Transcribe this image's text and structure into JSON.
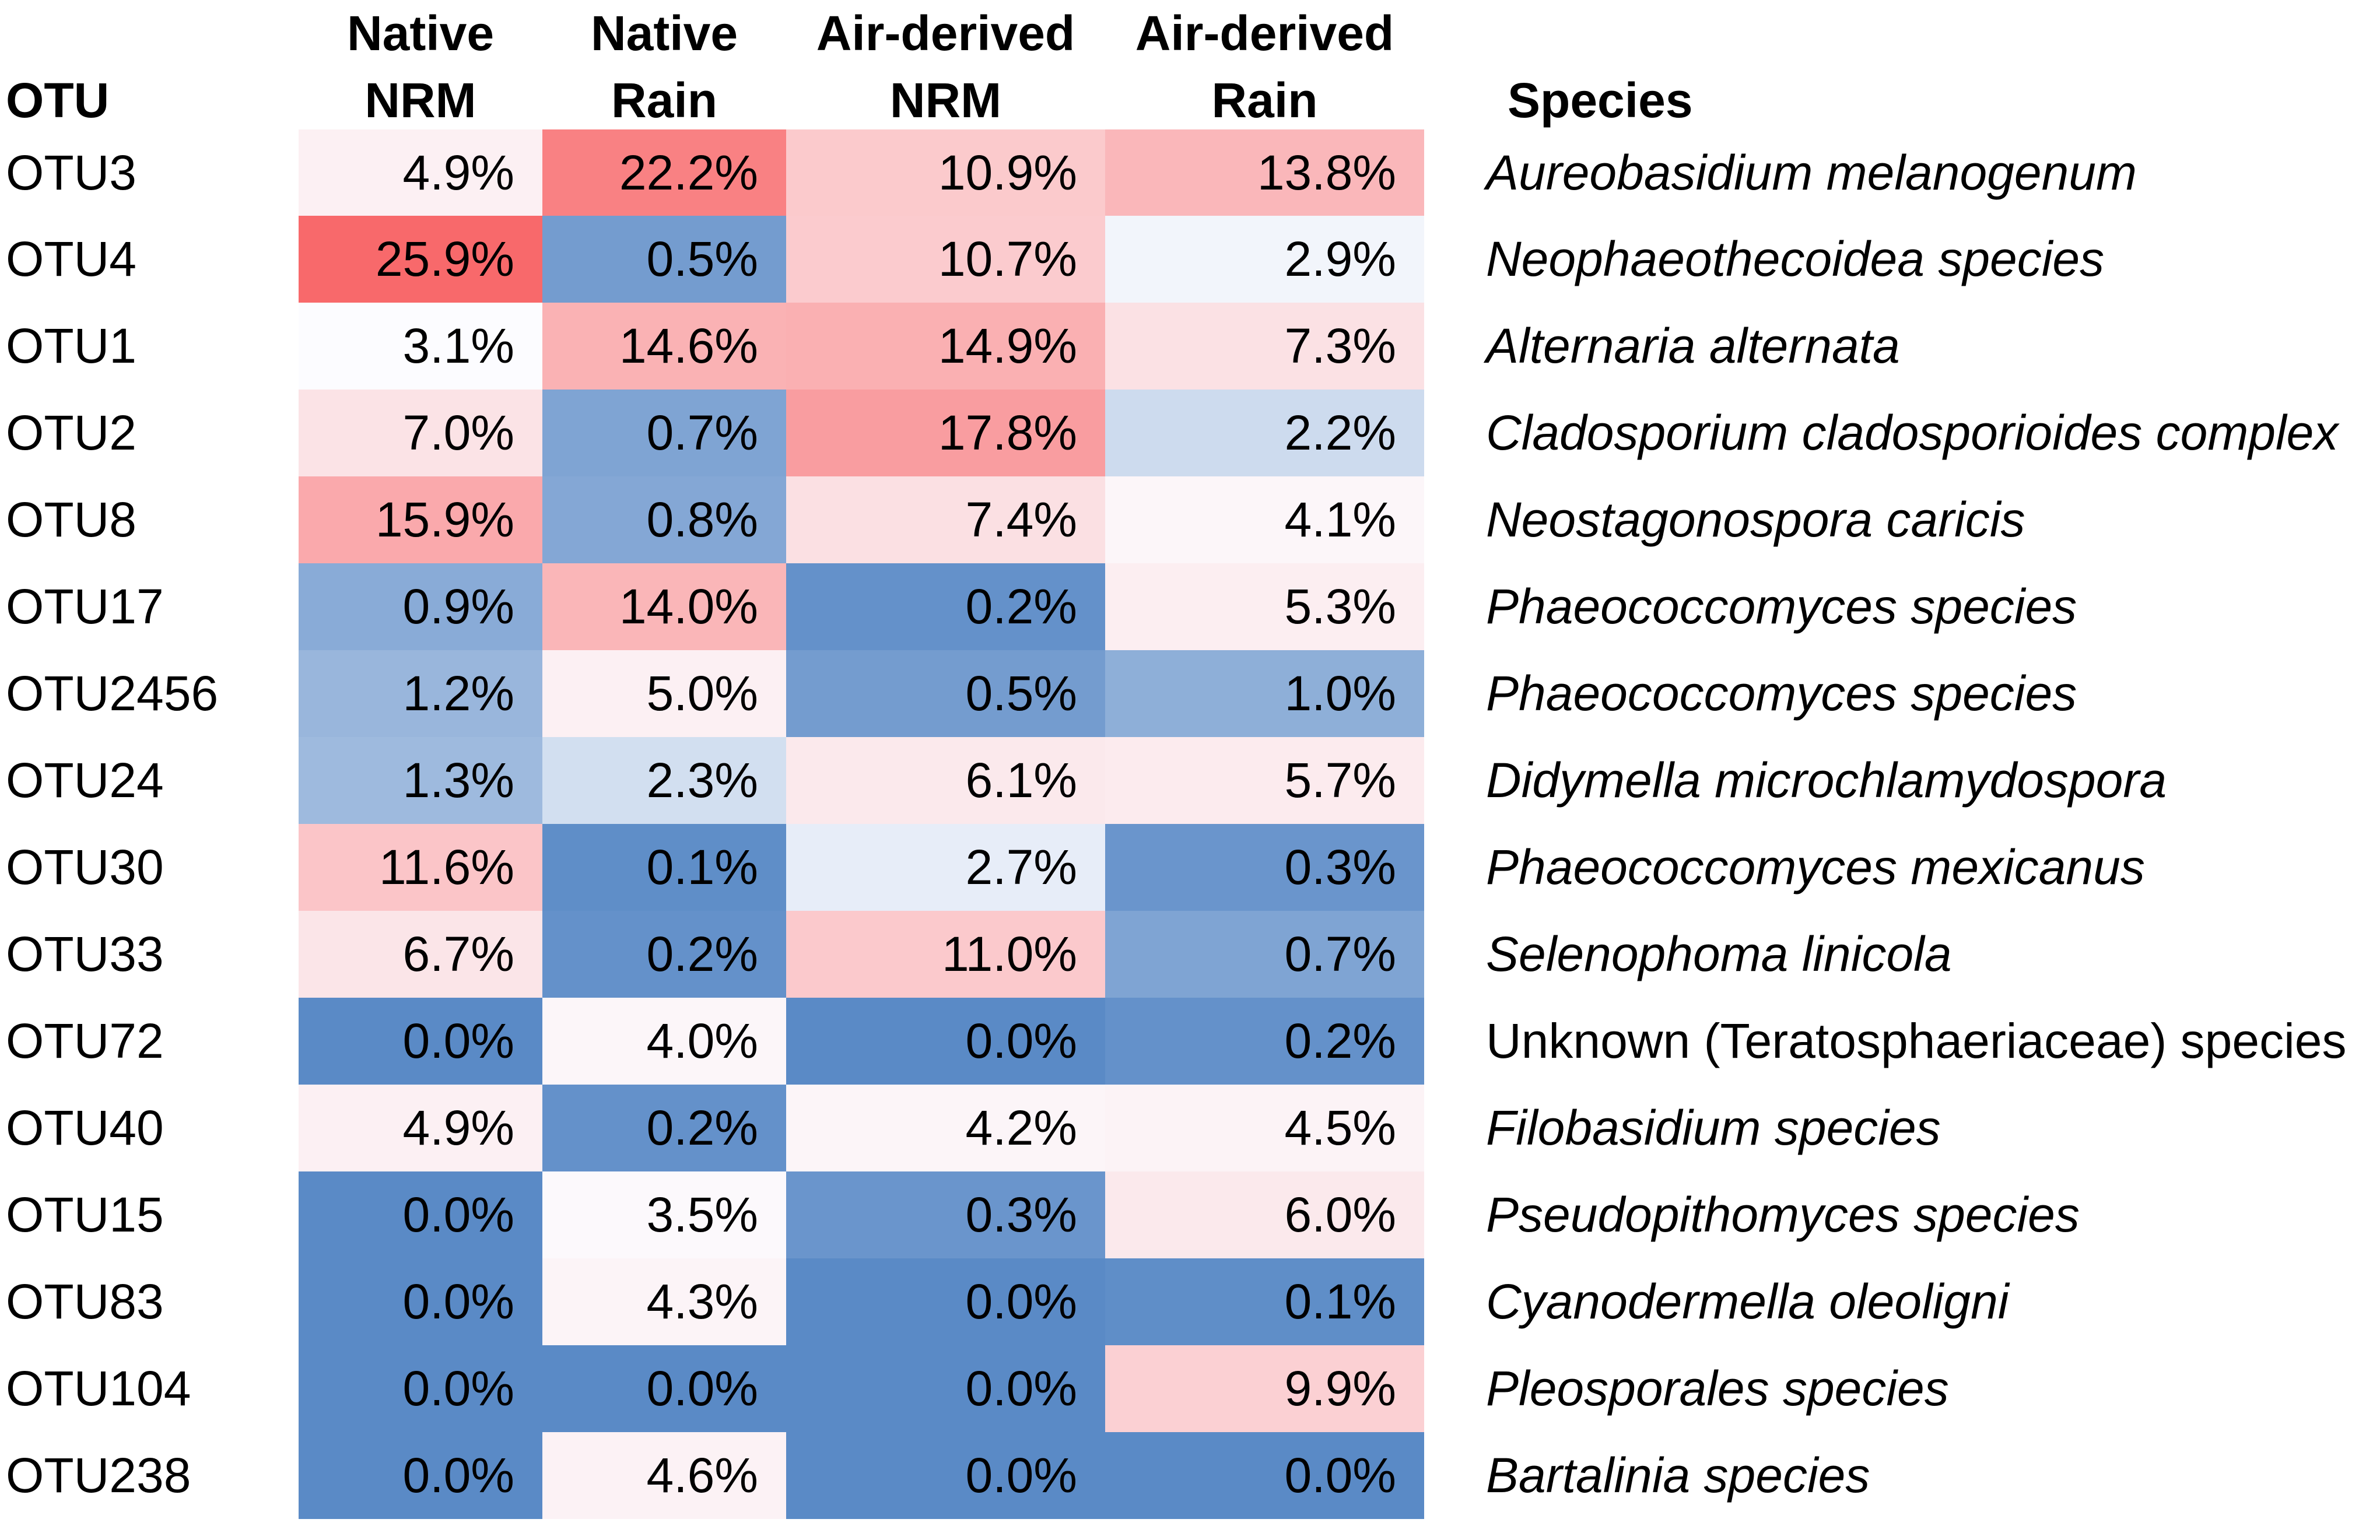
{
  "chart_data": {
    "type": "heatmap",
    "row_header": "OTU",
    "species_header": "Species",
    "columns": [
      {
        "line1": "Native",
        "line2": "NRM"
      },
      {
        "line1": "Native",
        "line2": "Rain"
      },
      {
        "line1": "Air-derived",
        "line2": "NRM"
      },
      {
        "line1": "Air-derived",
        "line2": "Rain"
      }
    ],
    "colors": {
      "high": "#f8696b",
      "mid": "#fcfcff",
      "low": "#5a8ac6"
    },
    "rows": [
      {
        "otu": "OTU3",
        "values": [
          4.9,
          22.2,
          10.9,
          13.8
        ],
        "labels": [
          "4.9%",
          "22.2%",
          "10.9%",
          "13.8%"
        ],
        "species": "Aureobasidium melanogenum",
        "italic": true
      },
      {
        "otu": "OTU4",
        "values": [
          25.9,
          0.5,
          10.7,
          2.9
        ],
        "labels": [
          "25.9%",
          "0.5%",
          "10.7%",
          "2.9%"
        ],
        "species": "Neophaeothecoidea species",
        "italic": true
      },
      {
        "otu": "OTU1",
        "values": [
          3.1,
          14.6,
          14.9,
          7.3
        ],
        "labels": [
          "3.1%",
          "14.6%",
          "14.9%",
          "7.3%"
        ],
        "species": "Alternaria alternata",
        "italic": true
      },
      {
        "otu": "OTU2",
        "values": [
          7.0,
          0.7,
          17.8,
          2.2
        ],
        "labels": [
          "7.0%",
          "0.7%",
          "17.8%",
          "2.2%"
        ],
        "species": "Cladosporium cladosporioides complex",
        "italic": true
      },
      {
        "otu": "OTU8",
        "values": [
          15.9,
          0.8,
          7.4,
          4.1
        ],
        "labels": [
          "15.9%",
          "0.8%",
          "7.4%",
          "4.1%"
        ],
        "species": "Neostagonospora caricis",
        "italic": true
      },
      {
        "otu": "OTU17",
        "values": [
          0.9,
          14.0,
          0.2,
          5.3
        ],
        "labels": [
          "0.9%",
          "14.0%",
          "0.2%",
          "5.3%"
        ],
        "species": "Phaeococcomyces species",
        "italic": true
      },
      {
        "otu": "OTU2456",
        "values": [
          1.2,
          5.0,
          0.5,
          1.0
        ],
        "labels": [
          "1.2%",
          "5.0%",
          "0.5%",
          "1.0%"
        ],
        "species": "Phaeococcomyces species",
        "italic": true
      },
      {
        "otu": "OTU24",
        "values": [
          1.3,
          2.3,
          6.1,
          5.7
        ],
        "labels": [
          "1.3%",
          "2.3%",
          "6.1%",
          "5.7%"
        ],
        "species": "Didymella microchlamydospora",
        "italic": true
      },
      {
        "otu": "OTU30",
        "values": [
          11.6,
          0.1,
          2.7,
          0.3
        ],
        "labels": [
          "11.6%",
          "0.1%",
          "2.7%",
          "0.3%"
        ],
        "species": "Phaeococcomyces mexicanus",
        "italic": true
      },
      {
        "otu": "OTU33",
        "values": [
          6.7,
          0.2,
          11.0,
          0.7
        ],
        "labels": [
          "6.7%",
          "0.2%",
          "11.0%",
          "0.7%"
        ],
        "species": "Selenophoma linicola",
        "italic": true
      },
      {
        "otu": "OTU72",
        "values": [
          0.0,
          4.0,
          0.0,
          0.2
        ],
        "labels": [
          "0.0%",
          "4.0%",
          "0.0%",
          "0.2%"
        ],
        "species": "Unknown (Teratosphaeriaceae) species",
        "italic": false
      },
      {
        "otu": "OTU40",
        "values": [
          4.9,
          0.2,
          4.2,
          4.5
        ],
        "labels": [
          "4.9%",
          "0.2%",
          "4.2%",
          "4.5%"
        ],
        "species": "Filobasidium species",
        "italic": true
      },
      {
        "otu": "OTU15",
        "values": [
          0.0,
          3.5,
          0.3,
          6.0
        ],
        "labels": [
          "0.0%",
          "3.5%",
          "0.3%",
          "6.0%"
        ],
        "species": "Pseudopithomyces species",
        "italic": true
      },
      {
        "otu": "OTU83",
        "values": [
          0.0,
          4.3,
          0.0,
          0.1
        ],
        "labels": [
          "0.0%",
          "4.3%",
          "0.0%",
          "0.1%"
        ],
        "species": "Cyanodermella oleoligni",
        "italic": true
      },
      {
        "otu": "OTU104",
        "values": [
          0.0,
          0.0,
          0.0,
          9.9
        ],
        "labels": [
          "0.0%",
          "0.0%",
          "0.0%",
          "9.9%"
        ],
        "species": "Pleosporales species",
        "italic": true
      },
      {
        "otu": "OTU238",
        "values": [
          0.0,
          4.6,
          0.0,
          0.0
        ],
        "labels": [
          "0.0%",
          "4.6%",
          "0.0%",
          "0.0%"
        ],
        "species": "Bartalinia species",
        "italic": true
      }
    ]
  }
}
